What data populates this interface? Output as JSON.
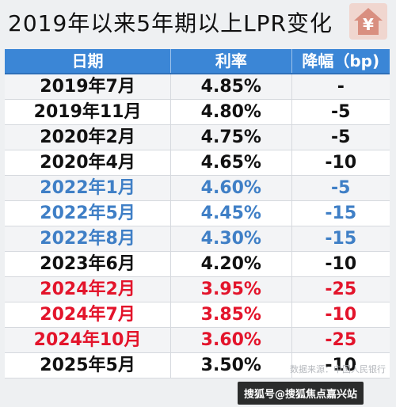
{
  "title": "2019年以来5年期以上LPR变化",
  "icon": {
    "name": "house-yen-icon",
    "glyph": "¥",
    "color": "#d98f80"
  },
  "colors": {
    "header_bg": "#3b86d6",
    "black": "#111111",
    "blue": "#3f7fc6",
    "red": "#e3142b"
  },
  "table": {
    "headers": [
      "日期",
      "利率",
      "降幅（bp)"
    ],
    "rows": [
      {
        "date": "2019年7月",
        "rate": "4.85%",
        "cut": "-",
        "color": "#111111"
      },
      {
        "date": "2019年11月",
        "rate": "4.80%",
        "cut": "-5",
        "color": "#111111"
      },
      {
        "date": "2020年2月",
        "rate": "4.75%",
        "cut": "-5",
        "color": "#111111"
      },
      {
        "date": "2020年4月",
        "rate": "4.65%",
        "cut": "-10",
        "color": "#111111"
      },
      {
        "date": "2022年1月",
        "rate": "4.60%",
        "cut": "-5",
        "color": "#3f7fc6"
      },
      {
        "date": "2022年5月",
        "rate": "4.45%",
        "cut": "-15",
        "color": "#3f7fc6"
      },
      {
        "date": "2022年8月",
        "rate": "4.30%",
        "cut": "-15",
        "color": "#3f7fc6"
      },
      {
        "date": "2023年6月",
        "rate": "4.20%",
        "cut": "-10",
        "color": "#111111"
      },
      {
        "date": "2024年2月",
        "rate": "3.95%",
        "cut": "-25",
        "color": "#e3142b"
      },
      {
        "date": "2024年7月",
        "rate": "3.85%",
        "cut": "-10",
        "color": "#e3142b"
      },
      {
        "date": "2024年10月",
        "rate": "3.60%",
        "cut": "-25",
        "color": "#e3142b"
      },
      {
        "date": "2025年5月",
        "rate": "3.50%",
        "cut": "-10",
        "color": "#111111"
      }
    ]
  },
  "watermark": "数据来源：中国人民银行",
  "footer": "搜狐号@搜狐焦点嘉兴站"
}
